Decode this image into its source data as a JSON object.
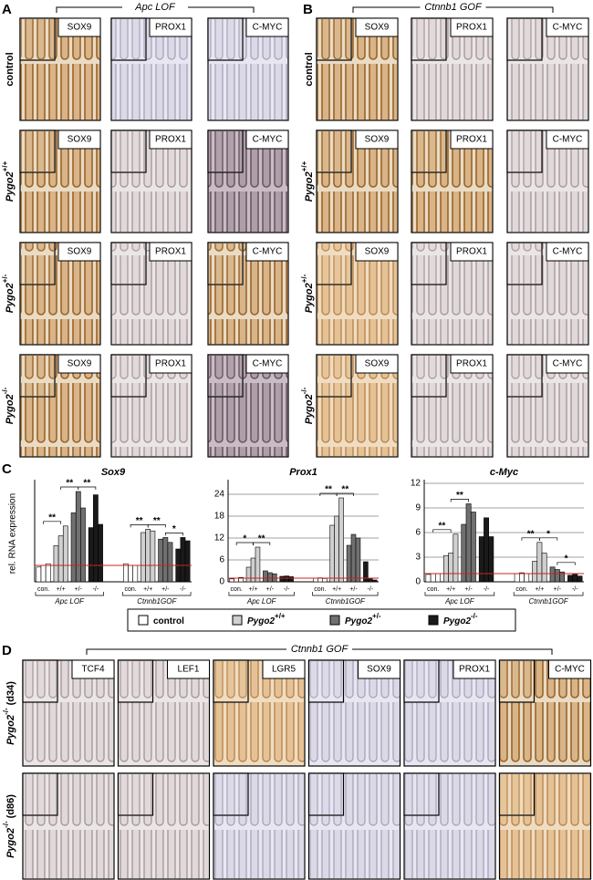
{
  "panels": {
    "A": {
      "label": "A",
      "title": "Apc LOF",
      "columns": [
        "SOX9",
        "PROX1",
        "C-MYC"
      ],
      "rows": [
        {
          "name": "control"
        },
        {
          "name": "Pygo2",
          "sup": "+/+"
        },
        {
          "name": "Pygo2",
          "sup": "+/-"
        },
        {
          "name": "Pygo2",
          "sup": "-/-"
        }
      ]
    },
    "B": {
      "label": "B",
      "title": "Ctnnb1 GOF",
      "columns": [
        "SOX9",
        "PROX1",
        "C-MYC"
      ],
      "rows": [
        {
          "name": "control"
        },
        {
          "name": "Pygo2",
          "sup": "+/+"
        },
        {
          "name": "Pygo2",
          "sup": "+/-"
        },
        {
          "name": "Pygo2",
          "sup": "-/-"
        }
      ]
    },
    "C": {
      "label": "C",
      "ylabel": "rel. RNA expression"
    },
    "D": {
      "label": "D",
      "title": "Ctnnb1 GOF",
      "columns": [
        "TCF4",
        "LEF1",
        "LGR5",
        "SOX9",
        "PROX1",
        "C-MYC"
      ],
      "rows": [
        {
          "name": "Pygo2",
          "sup": "-/-",
          "suffix": "(d34)"
        },
        {
          "name": "Pygo2",
          "sup": "-/-",
          "suffix": "(d86)"
        }
      ]
    }
  },
  "chart_data": [
    {
      "type": "bar",
      "title": "Sox9",
      "ylim": [
        0,
        6
      ],
      "reference_line": 1,
      "series": [
        {
          "name": "control",
          "color": "#ffffff"
        },
        {
          "name": "Pygo2",
          "sup": "+/+",
          "color": "#d0d0d0"
        },
        {
          "name": "Pygo2",
          "sup": "+/-",
          "color": "#707070"
        },
        {
          "name": "Pygo2",
          "sup": "-/-",
          "color": "#1a1a1a"
        }
      ],
      "groups": [
        {
          "name": "Apc LOF",
          "categories": [
            "con.",
            "+/+",
            "+/-",
            "-/-"
          ],
          "values": [
            [
              0.9,
              1.0,
              1.1
            ],
            [
              2.2,
              2.8,
              3.4
            ],
            [
              4.2,
              5.5,
              4.5
            ],
            [
              3.3,
              5.3,
              3.5
            ]
          ]
        },
        {
          "name": "Ctnnb1GOF",
          "categories": [
            "con.",
            "+/+",
            "+/-",
            "-/-"
          ],
          "values": [
            [
              1.1,
              1.0,
              1.0
            ],
            [
              3.0,
              3.2,
              3.1
            ],
            [
              2.6,
              2.7,
              2.4
            ],
            [
              2.0,
              2.7,
              2.5
            ]
          ]
        }
      ],
      "annotations": [
        "**",
        "**",
        "**",
        "**",
        "**",
        "*"
      ]
    },
    {
      "type": "bar",
      "title": "Prox1",
      "ylim": [
        0,
        27
      ],
      "yticks": [
        0,
        6,
        12,
        18,
        24
      ],
      "reference_line": 1,
      "series": [
        {
          "name": "control",
          "color": "#ffffff"
        },
        {
          "name": "Pygo2",
          "sup": "+/+",
          "color": "#d0d0d0"
        },
        {
          "name": "Pygo2",
          "sup": "+/-",
          "color": "#707070"
        },
        {
          "name": "Pygo2",
          "sup": "-/-",
          "color": "#1a1a1a"
        }
      ],
      "groups": [
        {
          "name": "Apc LOF",
          "categories": [
            "con.",
            "+/+",
            "+/-",
            "-/-"
          ],
          "values": [
            [
              0.8,
              1.0,
              1.2
            ],
            [
              4.0,
              6.5,
              9.5
            ],
            [
              3.0,
              2.5,
              2.2
            ],
            [
              1.5,
              1.6,
              1.4
            ]
          ]
        },
        {
          "name": "Ctnnb1GOF",
          "categories": [
            "con.",
            "+/+",
            "+/-",
            "-/-"
          ],
          "values": [
            [
              1.0,
              1.1,
              0.9
            ],
            [
              15.5,
              18.0,
              23.0
            ],
            [
              10.0,
              13.0,
              12.0
            ],
            [
              5.5,
              1.0,
              0.5
            ]
          ]
        }
      ],
      "annotations": [
        "*",
        "**",
        "**",
        "**"
      ]
    },
    {
      "type": "bar",
      "title": "c-Myc",
      "ylim": [
        0,
        12
      ],
      "yticks": [
        0,
        3,
        6,
        9,
        12
      ],
      "reference_line": 1,
      "series": [
        {
          "name": "control",
          "color": "#ffffff"
        },
        {
          "name": "Pygo2",
          "sup": "+/+",
          "color": "#d0d0d0"
        },
        {
          "name": "Pygo2",
          "sup": "+/-",
          "color": "#707070"
        },
        {
          "name": "Pygo2",
          "sup": "-/-",
          "color": "#1a1a1a"
        }
      ],
      "groups": [
        {
          "name": "Apc LOF",
          "categories": [
            "con.",
            "+/+",
            "+/-",
            "-/-"
          ],
          "values": [
            [
              0.9,
              1.0,
              1.0
            ],
            [
              3.2,
              3.5,
              5.8
            ],
            [
              7.0,
              9.5,
              8.5
            ],
            [
              5.5,
              7.8,
              5.5
            ]
          ]
        },
        {
          "name": "Ctnnb1GOF",
          "categories": [
            "con.",
            "+/+",
            "+/-",
            "-/-"
          ],
          "values": [
            [
              1.0,
              1.1,
              1.0
            ],
            [
              2.5,
              4.8,
              3.5
            ],
            [
              1.8,
              1.5,
              1.2
            ],
            [
              0.8,
              0.9,
              0.7
            ]
          ]
        }
      ],
      "annotations": [
        "**",
        "**",
        "**",
        "*",
        "*"
      ]
    }
  ]
}
